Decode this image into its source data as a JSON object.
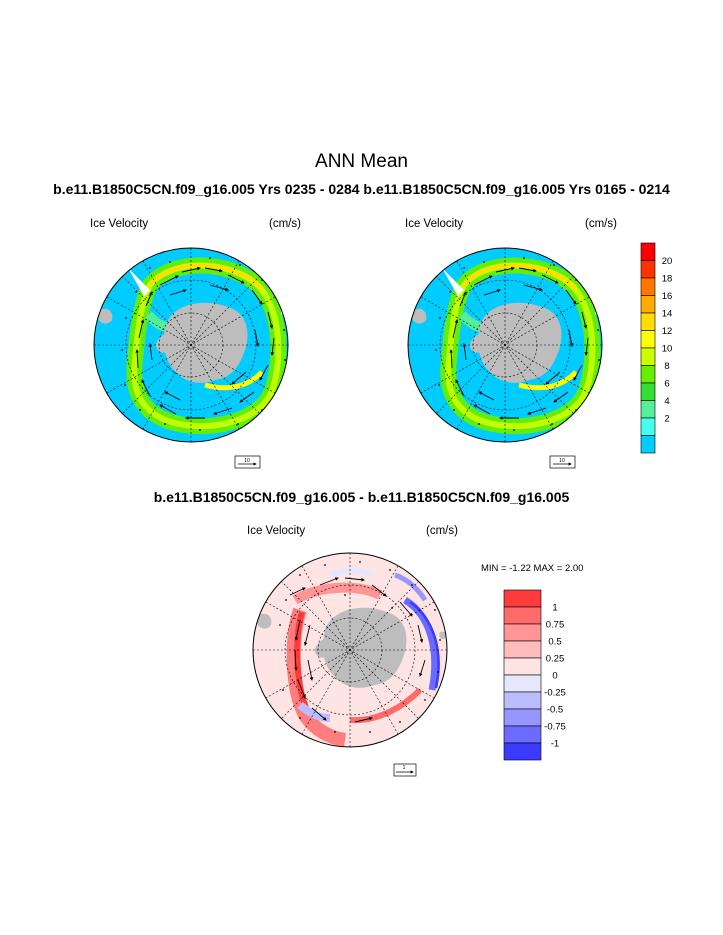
{
  "page": {
    "title": "ANN Mean",
    "top_subtitle": "b.e11.B1850C5CN.f09_g16.005  Yrs 0235 - 0284 b.e11.B1850C5CN.f09_g16.005  Yrs 0165 - 0214",
    "diff_subtitle": "b.e11.B1850C5CN.f09_g16.005 - b.e11.B1850C5CN.f09_g16.005"
  },
  "panels": [
    {
      "id": "case1",
      "field": "Ice Velocity",
      "units": "(cm/s)",
      "ref_vector": "10"
    },
    {
      "id": "case2",
      "field": "Ice Velocity",
      "units": "(cm/s)",
      "ref_vector": "10"
    },
    {
      "id": "diff",
      "field": "Ice Velocity",
      "units": "(cm/s)",
      "ref_vector": "1",
      "stats": "MIN =  -1.22 MAX =   2.00"
    }
  ],
  "colorbar_speed": {
    "labels": [
      "20",
      "18",
      "16",
      "14",
      "12",
      "10",
      "8",
      "6",
      "4",
      "2"
    ],
    "colors": [
      "#ff0000",
      "#ff3300",
      "#ff7700",
      "#ffaa00",
      "#ffdd00",
      "#ffff00",
      "#ccff00",
      "#66ee00",
      "#33dd33",
      "#55ee99",
      "#44ffee",
      "#00ccff"
    ]
  },
  "colorbar_diff": {
    "labels": [
      "1",
      "0.75",
      "0.5",
      "0.25",
      "0",
      "-0.25",
      "-0.5",
      "-0.75",
      "-1"
    ],
    "colors": [
      "#ff3b3b",
      "#ff6b6b",
      "#ff9595",
      "#ffbcbc",
      "#ffe4e4",
      "#e6e6ff",
      "#bcbcff",
      "#9696ff",
      "#6b6bff",
      "#3b3bff"
    ]
  },
  "map_colors": {
    "ocean": "#00ccff",
    "land": "#bdbdbd",
    "diff_background": "#ffe4e4"
  }
}
